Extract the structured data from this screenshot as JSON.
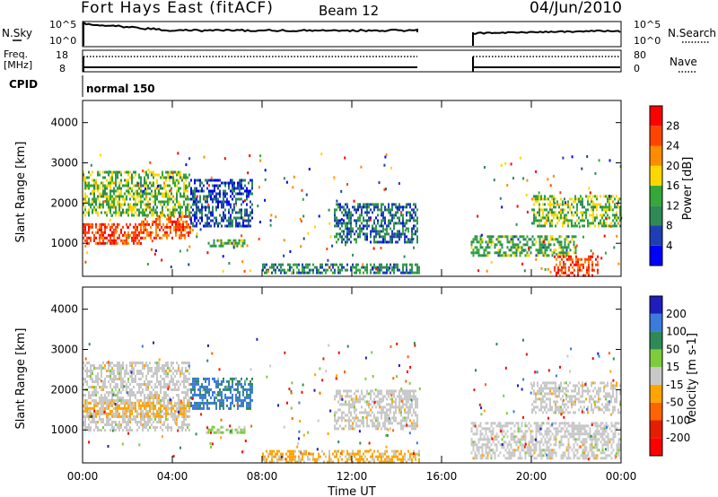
{
  "header": {
    "station": "Fort Hays East (fitACF)",
    "beam": "Beam 12",
    "date": "04/Jun/2010"
  },
  "noise_panel": {
    "left_label": "N.Sky",
    "right_label": "N.Search",
    "left_ticks": [
      "10^5",
      "10^0"
    ],
    "right_ticks": [
      "10^5",
      "10^0"
    ]
  },
  "freq_panel": {
    "left_label_line1": "Freq.",
    "left_label_line2": "[MHz]",
    "right_label": "Nave",
    "left_ticks": [
      "18",
      "8"
    ],
    "right_ticks": [
      "80",
      "0"
    ]
  },
  "cpid_panel": {
    "label": "CPID",
    "value": "normal 150"
  },
  "time_axis": {
    "label": "Time UT",
    "ticks": [
      "00:00",
      "04:00",
      "08:00",
      "12:00",
      "16:00",
      "20:00",
      "00:00"
    ]
  },
  "colors": {
    "power": [
      "#0000ff",
      "#1e3fb4",
      "#2e8b57",
      "#34a838",
      "#ffd700",
      "#ff8c00",
      "#ff4500",
      "#ff0000"
    ],
    "velocity": [
      "#1e1ebe",
      "#3c7adc",
      "#2e8b57",
      "#7ccc3c",
      "#c8c8c8",
      "#ffa500",
      "#ff6400",
      "#e61e00",
      "#ff0000"
    ]
  },
  "chart_data": [
    {
      "type": "heatmap",
      "title": "Power",
      "xlabel": "Time UT",
      "ylabel": "Slant Range [km]",
      "xlim": [
        0,
        24
      ],
      "ylim": [
        180,
        4550
      ],
      "yticks": [
        "1000",
        "2000",
        "3000",
        "4000"
      ],
      "colorbar": {
        "label": "Power [dB]",
        "ticks": [
          "4",
          "8",
          "12",
          "16",
          "20",
          "24",
          "28"
        ],
        "range": [
          0,
          30
        ]
      },
      "data_gap_hours": [
        15.0,
        17.3
      ],
      "echo_regions": [
        {
          "t0": 0.0,
          "t1": 2.6,
          "r0": 1000,
          "r1": 1500,
          "value": 26
        },
        {
          "t0": 2.6,
          "t1": 4.8,
          "r0": 1150,
          "r1": 1700,
          "value": 24
        },
        {
          "t0": 0.0,
          "t1": 4.8,
          "r0": 1700,
          "r1": 2800,
          "value": 14
        },
        {
          "t0": 4.8,
          "t1": 7.6,
          "r0": 1400,
          "r1": 2600,
          "value": 6
        },
        {
          "t0": 5.5,
          "t1": 7.2,
          "r0": 900,
          "r1": 1100,
          "value": 12
        },
        {
          "t0": 11.2,
          "t1": 14.9,
          "r0": 1000,
          "r1": 2000,
          "value": 8
        },
        {
          "t0": 8.0,
          "t1": 15.0,
          "r0": 250,
          "r1": 500,
          "value": 10
        },
        {
          "t0": 17.3,
          "t1": 22.0,
          "r0": 700,
          "r1": 1200,
          "value": 12
        },
        {
          "t0": 21.0,
          "t1": 23.0,
          "r0": 200,
          "r1": 700,
          "value": 26
        },
        {
          "t0": 20.0,
          "t1": 24.0,
          "r0": 1400,
          "r1": 2200,
          "value": 14
        }
      ]
    },
    {
      "type": "heatmap",
      "title": "Velocity",
      "xlabel": "Time UT",
      "ylabel": "Slant Range [km]",
      "xlim": [
        0,
        24
      ],
      "ylim": [
        180,
        4550
      ],
      "yticks": [
        "1000",
        "2000",
        "3000",
        "4000"
      ],
      "colorbar": {
        "label": "Velocity [m s-1]",
        "ticks": [
          "200",
          "100",
          "50",
          "15",
          "-15",
          "-50",
          "-100",
          "-200"
        ],
        "range": [
          -250,
          250
        ]
      },
      "data_gap_hours": [
        15.0,
        17.3
      ],
      "echo_regions": [
        {
          "t0": 0.0,
          "t1": 4.8,
          "r0": 1000,
          "r1": 2700,
          "value": 0
        },
        {
          "t0": 0.0,
          "t1": 4.8,
          "r0": 1300,
          "r1": 1700,
          "value": -40
        },
        {
          "t0": 4.8,
          "t1": 7.6,
          "r0": 1500,
          "r1": 2300,
          "value": 150
        },
        {
          "t0": 5.5,
          "t1": 7.2,
          "r0": 900,
          "r1": 1100,
          "value": 40
        },
        {
          "t0": 11.2,
          "t1": 14.9,
          "r0": 1000,
          "r1": 2000,
          "value": 0
        },
        {
          "t0": 8.0,
          "t1": 15.0,
          "r0": 200,
          "r1": 500,
          "value": -40
        },
        {
          "t0": 17.3,
          "t1": 24.0,
          "r0": 300,
          "r1": 1200,
          "value": 0
        },
        {
          "t0": 20.0,
          "t1": 24.0,
          "r0": 1400,
          "r1": 2200,
          "value": 0
        }
      ]
    }
  ]
}
